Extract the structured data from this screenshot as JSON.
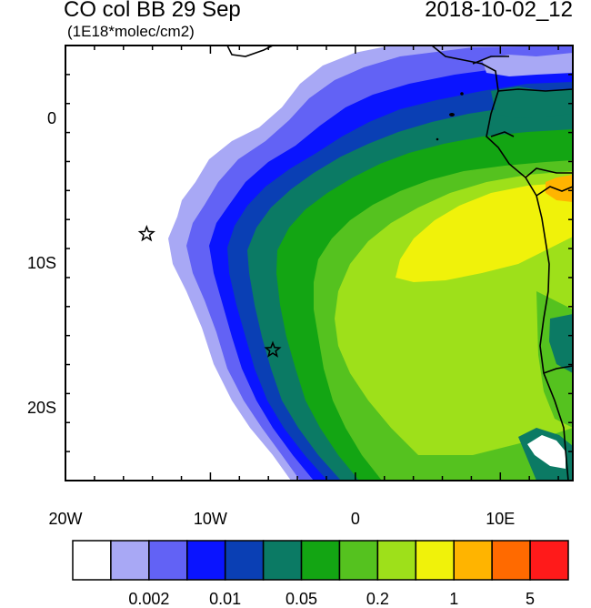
{
  "title": {
    "main": "CO col BB 29 Sep",
    "units": "(1E18*molec/cm2)",
    "datetime": "2018-10-02_12"
  },
  "axes": {
    "lon_ticks": [
      {
        "label": "20W",
        "value": -20
      },
      {
        "label": "10W",
        "value": -10
      },
      {
        "label": "0",
        "value": 0
      },
      {
        "label": "10E",
        "value": 10
      }
    ],
    "lat_ticks": [
      {
        "label": "0",
        "value": 0
      },
      {
        "label": "10S",
        "value": -10
      },
      {
        "label": "20S",
        "value": -20
      }
    ],
    "lon_range": [
      -20,
      15
    ],
    "lat_range": [
      -25,
      5
    ]
  },
  "colorbar": {
    "colors": [
      "#ffffff",
      "#a8a8f5",
      "#6262f5",
      "#0a14ff",
      "#0a3fb4",
      "#0b7a64",
      "#13a513",
      "#55c21f",
      "#9ee01a",
      "#f0f20a",
      "#ffb400",
      "#ff6a00",
      "#ff1a1a"
    ],
    "labels": [
      {
        "text": "0.002",
        "boundary": 2
      },
      {
        "text": "0.01",
        "boundary": 4
      },
      {
        "text": "0.05",
        "boundary": 6
      },
      {
        "text": "0.2",
        "boundary": 8
      },
      {
        "text": "1",
        "boundary": 10
      },
      {
        "text": "5",
        "boundary": 12
      }
    ]
  },
  "markers": [
    {
      "name": "star-marker-west",
      "lon": -14.4,
      "lat": -8.0
    },
    {
      "name": "star-marker-central",
      "lon": -5.7,
      "lat": -16.0
    }
  ]
}
